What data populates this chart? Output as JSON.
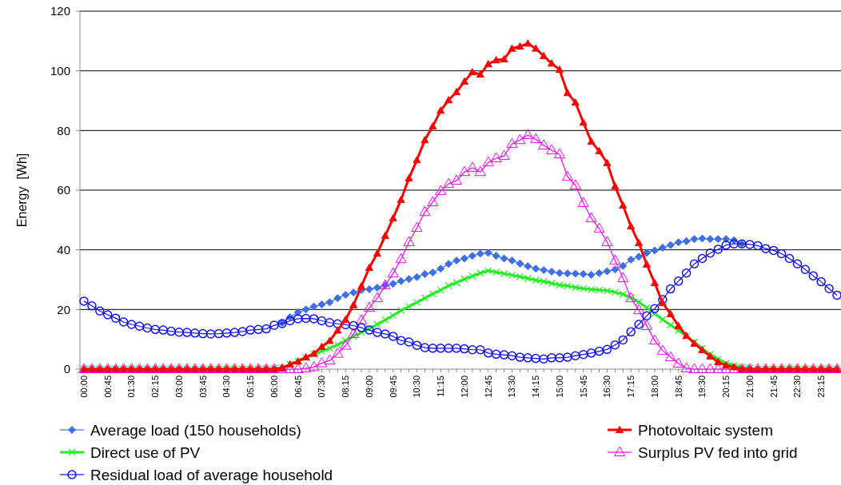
{
  "chart_data": {
    "type": "line",
    "ylabel": "Energy  [Wh]",
    "categories": [
      "00:00",
      null,
      null,
      "00:45",
      null,
      null,
      "01:30",
      null,
      null,
      "02:15",
      null,
      null,
      "03:00",
      null,
      null,
      "03:45",
      null,
      null,
      "04:30",
      null,
      null,
      "05:15",
      null,
      null,
      "06:00",
      null,
      null,
      "06:45",
      null,
      null,
      "07:30",
      null,
      null,
      "08:15",
      null,
      null,
      "09:00",
      null,
      null,
      "09:45",
      null,
      null,
      "10:30",
      null,
      null,
      "11:15",
      null,
      null,
      "12:00",
      null,
      null,
      "12:45",
      null,
      null,
      "13:30",
      null,
      null,
      "14:15",
      null,
      null,
      "15:00",
      null,
      null,
      "15:45",
      null,
      null,
      "16:30",
      null,
      null,
      "17:15",
      null,
      null,
      "18:00",
      null,
      null,
      "18:45",
      null,
      null,
      "19:30",
      null,
      null,
      "20:15",
      null,
      null,
      "21:00",
      null,
      null,
      "21:45",
      null,
      null,
      "22:30",
      null,
      null,
      "23:15",
      null,
      null
    ],
    "ylim": [
      0,
      120
    ],
    "yticks": [
      0,
      20,
      40,
      60,
      80,
      100,
      120
    ],
    "grid": "y",
    "legend": "bottom",
    "series": [
      {
        "name": "Average load (150 households)",
        "color": "#3f6fe8",
        "marker": "diamond",
        "values": [
          null,
          null,
          null,
          null,
          null,
          null,
          null,
          null,
          null,
          null,
          null,
          null,
          null,
          null,
          null,
          null,
          null,
          null,
          null,
          null,
          null,
          null,
          null,
          null,
          null,
          15.5,
          17.4,
          19,
          20,
          21,
          21.7,
          22.4,
          23.8,
          24.9,
          25.7,
          26.5,
          26.8,
          27.3,
          28.1,
          28.6,
          29.5,
          30.2,
          30.9,
          31.9,
          32.4,
          33.7,
          35.3,
          36.4,
          37.1,
          38,
          38.7,
          39,
          38,
          37.1,
          36.4,
          35.4,
          34.5,
          33.7,
          33.2,
          32.7,
          32.2,
          32.1,
          32,
          31.9,
          31.6,
          32.2,
          32.8,
          33.4,
          34.6,
          36.7,
          37.7,
          39,
          39.8,
          40.7,
          41.6,
          42.5,
          42.9,
          43.6,
          43.8,
          43.6,
          43.6,
          43.6,
          43.2,
          42,
          null,
          null,
          null,
          null,
          null,
          null,
          null,
          null,
          null,
          null,
          null,
          null
        ]
      },
      {
        "name": "Photovoltaic system",
        "color": "#ff0000",
        "marker": "triangle",
        "values": [
          0,
          0,
          0,
          0,
          0,
          0,
          0,
          0,
          0,
          0,
          0,
          0,
          0,
          0,
          0,
          0,
          0,
          0,
          0,
          0,
          0,
          0,
          0,
          0,
          0,
          0.3,
          1.6,
          2.6,
          4,
          5.2,
          7.5,
          9.5,
          13,
          16.6,
          21.5,
          27.8,
          34,
          38.8,
          44.7,
          50.6,
          56.8,
          64,
          70.1,
          76.8,
          81.4,
          86.7,
          90.2,
          92.9,
          96.4,
          99.6,
          98.8,
          102.3,
          103.6,
          103.9,
          107.5,
          108.2,
          109.2,
          107.5,
          105,
          102.5,
          100.4,
          92.6,
          89.4,
          82.7,
          76.3,
          73.1,
          69.1,
          61.3,
          54.9,
          47.9,
          42.3,
          35.1,
          28.9,
          22.2,
          18.5,
          14.5,
          11.2,
          8.6,
          6.4,
          4.3,
          2.4,
          1.3,
          0.7,
          0,
          0,
          0,
          0,
          0,
          0,
          0,
          0,
          0,
          0,
          0,
          0,
          0
        ]
      },
      {
        "name": "Direct use of PV",
        "color": "#22ee22",
        "marker": "cross",
        "values": [
          0,
          0,
          0,
          0,
          0,
          0,
          0,
          0,
          0,
          0,
          0,
          0,
          0,
          0,
          0,
          0,
          0,
          0,
          0,
          0,
          0,
          0,
          0,
          0,
          0.3,
          0.5,
          1.6,
          2.7,
          3.8,
          5,
          6,
          7,
          8.2,
          9.5,
          11,
          12.3,
          13.6,
          15,
          16.5,
          18,
          19.6,
          21,
          22.4,
          23.8,
          25.2,
          26.5,
          28,
          29,
          30.2,
          31.2,
          32.2,
          33,
          32.5,
          32,
          31.5,
          31,
          30.4,
          29.8,
          29.4,
          28.8,
          28.2,
          27.9,
          27.4,
          27,
          26.7,
          26.5,
          26.3,
          25.8,
          25.1,
          24,
          22.5,
          20.6,
          18.6,
          16.6,
          14.8,
          13,
          11,
          9.1,
          7,
          5,
          3.4,
          2,
          1.2,
          0.7,
          0.4,
          0,
          0,
          0,
          0,
          0,
          0,
          0,
          0,
          0,
          0,
          0
        ]
      },
      {
        "name": "Surplus PV fed into grid",
        "color": "#ff00ff",
        "marker": "triangle",
        "values": [
          0,
          0,
          0,
          0,
          0,
          0,
          0,
          0,
          0,
          0,
          0,
          0,
          0,
          0,
          0,
          0,
          0,
          0,
          0,
          0,
          0,
          0,
          0,
          0,
          0,
          0,
          0,
          0,
          0.3,
          0.7,
          2,
          2.9,
          5.2,
          7.9,
          11.8,
          16.4,
          20.6,
          23.8,
          28.1,
          32.1,
          36.9,
          42.6,
          47.4,
          52.7,
          56,
          59.7,
          62.1,
          63.2,
          66.1,
          67.5,
          66.1,
          69.3,
          70.7,
          71.5,
          75.5,
          76.8,
          78.5,
          77.1,
          75,
          73.4,
          72,
          64.5,
          61.6,
          55.7,
          50.6,
          47.1,
          42.6,
          36.4,
          30.5,
          23.8,
          19.8,
          14.5,
          9.6,
          6.2,
          4,
          1.9,
          0.3,
          0,
          0,
          0,
          0,
          0,
          0,
          0,
          0,
          0,
          0,
          0,
          0,
          0,
          0,
          0,
          0,
          0,
          0,
          0
        ]
      },
      {
        "name": "Residual load of average household",
        "color": "#1010ff",
        "marker": "circle",
        "values": [
          22.8,
          21.2,
          19.5,
          18.2,
          17.1,
          15.8,
          15,
          14.4,
          13.8,
          13.3,
          13.1,
          12.7,
          12.4,
          12.3,
          12.1,
          11.9,
          11.8,
          11.9,
          12.1,
          12.3,
          12.6,
          13.1,
          13.3,
          13.5,
          14.7,
          15.3,
          16.2,
          16.9,
          17,
          16.9,
          16.2,
          15.6,
          15.2,
          14.9,
          14.6,
          13.9,
          13.1,
          12.3,
          11.8,
          11,
          9.6,
          9.1,
          8,
          7.2,
          7,
          7,
          7,
          7,
          6.8,
          6.5,
          6.5,
          5.4,
          5,
          4.8,
          4.5,
          4,
          3.8,
          3.6,
          3.4,
          3.8,
          3.8,
          4,
          4.5,
          4.9,
          5.4,
          6,
          6.6,
          8.1,
          9.8,
          12.5,
          15,
          17.9,
          20.3,
          23.3,
          26.9,
          29.5,
          32.2,
          35.3,
          37.1,
          38.9,
          40.2,
          41.6,
          42,
          42,
          41.8,
          41.4,
          40.4,
          39.8,
          38.7,
          37.1,
          35.3,
          33.4,
          31.3,
          29.3,
          27,
          24.8
        ]
      }
    ]
  }
}
